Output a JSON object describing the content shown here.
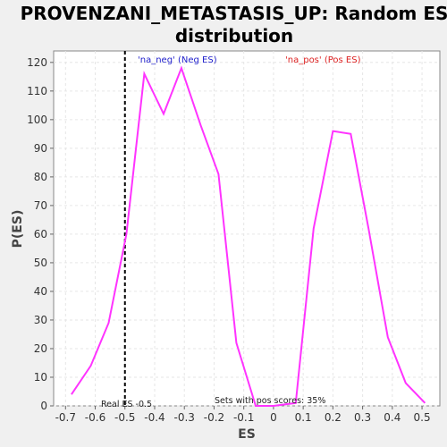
{
  "chart_data": {
    "type": "line",
    "title_line1": "PROVENZANI_METASTASIS_UP: Random ES",
    "title_line2": "distribution",
    "xlabel": "ES",
    "ylabel": "P(ES)",
    "xlim": [
      -0.74,
      0.56
    ],
    "ylim": [
      0,
      124
    ],
    "xticks": [
      -0.7,
      -0.6,
      -0.5,
      -0.4,
      -0.3,
      -0.2,
      -0.1,
      0,
      0.1,
      0.2,
      0.3,
      0.4,
      0.5
    ],
    "yticks": [
      0,
      10,
      20,
      30,
      40,
      50,
      60,
      70,
      80,
      90,
      100,
      110,
      120
    ],
    "grid": true,
    "line_color": "#ff33ff",
    "series": [
      {
        "x": [
          -0.68,
          -0.615,
          -0.555,
          -0.495,
          -0.435,
          -0.37,
          -0.31,
          -0.245,
          -0.185,
          -0.125,
          -0.06,
          0.0,
          0.075,
          0.135,
          0.2,
          0.26,
          0.32,
          0.385,
          0.445,
          0.51
        ],
        "values": [
          4,
          14,
          29,
          60,
          116,
          102,
          118,
          98,
          81,
          22,
          0,
          0,
          1,
          62,
          96,
          95,
          62,
          24,
          8,
          1
        ]
      }
    ],
    "real_es": -0.5,
    "annotations": {
      "neg_label": "'na_neg' (Neg ES)",
      "pos_label": "'na_pos' (Pos ES)",
      "real_es_label": "Real ES -0.5",
      "pos_scores_label": "Sets with pos scores: 35%"
    },
    "colors": {
      "neg": "#2222cc",
      "pos": "#dd2222"
    }
  }
}
